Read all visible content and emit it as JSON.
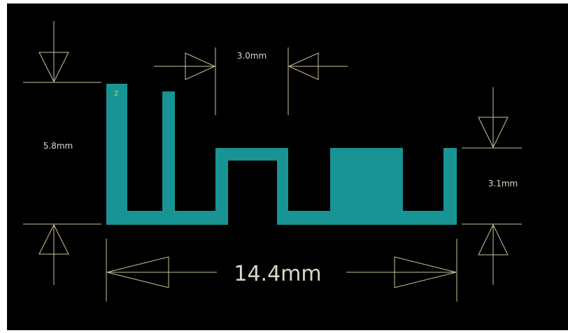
{
  "colors": {
    "background": "#000000",
    "trace": "#189494",
    "dimension_line": "#c9c49a",
    "dimension_text": "#d8d8c8",
    "pad_label": "#d6d64a"
  },
  "pad_label": "2",
  "dimensions": {
    "top_gap": "3.0mm",
    "left_height": "5.8mm",
    "right_height": "3.1mm",
    "total_width": "14.4mm"
  }
}
